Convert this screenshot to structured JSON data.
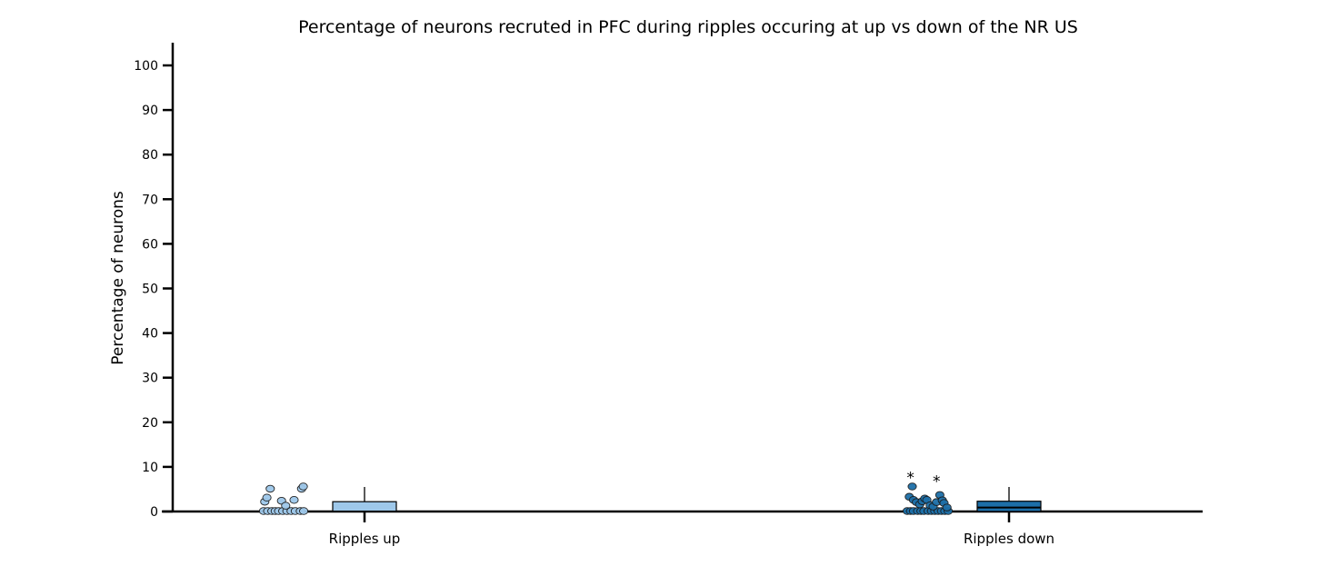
{
  "chart_data": {
    "type": "box",
    "title": "Percentage of neurons recruted in PFC during ripples occuring at up vs down of the NR US",
    "xlabel": "",
    "ylabel": "Percentage of neurons",
    "ylim": [
      0,
      105
    ],
    "yticks": [
      0,
      10,
      20,
      30,
      40,
      50,
      60,
      70,
      80,
      90,
      100
    ],
    "categories": [
      "Ripples up",
      "Ripples down"
    ],
    "series": [
      {
        "category": "Ripples up",
        "color": "#9ec8ea",
        "points": [
          {
            "j": 0.02,
            "y": 0
          },
          {
            "j": 0.12,
            "y": 0
          },
          {
            "j": 0.22,
            "y": 0
          },
          {
            "j": 0.3,
            "y": 0
          },
          {
            "j": 0.38,
            "y": 0
          },
          {
            "j": 0.48,
            "y": 0
          },
          {
            "j": 0.58,
            "y": 0
          },
          {
            "j": 0.68,
            "y": 0
          },
          {
            "j": 0.78,
            "y": 0
          },
          {
            "j": 0.9,
            "y": 0
          },
          {
            "j": 0.98,
            "y": 0
          },
          {
            "j": 0.05,
            "y": 2.1
          },
          {
            "j": 0.1,
            "y": 3.0
          },
          {
            "j": 0.18,
            "y": 5.0
          },
          {
            "j": 0.45,
            "y": 2.3
          },
          {
            "j": 0.55,
            "y": 1.2
          },
          {
            "j": 0.75,
            "y": 2.5
          },
          {
            "j": 0.93,
            "y": 5.0
          },
          {
            "j": 0.97,
            "y": 5.5
          }
        ],
        "box": {
          "q1": 0,
          "median": 0,
          "q3": 2.2,
          "whisker_low": 0,
          "whisker_high": 5.5
        },
        "outliers": []
      },
      {
        "category": "Ripples down",
        "color": "#1d6fa8",
        "points": [
          {
            "j": 0.0,
            "y": 0
          },
          {
            "j": 0.08,
            "y": 0
          },
          {
            "j": 0.15,
            "y": 0
          },
          {
            "j": 0.25,
            "y": 0
          },
          {
            "j": 0.33,
            "y": 0
          },
          {
            "j": 0.4,
            "y": 0
          },
          {
            "j": 0.5,
            "y": 0
          },
          {
            "j": 0.58,
            "y": 0
          },
          {
            "j": 0.66,
            "y": 0
          },
          {
            "j": 0.74,
            "y": 0
          },
          {
            "j": 0.82,
            "y": 0
          },
          {
            "j": 0.9,
            "y": 0
          },
          {
            "j": 0.98,
            "y": 0
          },
          {
            "j": 0.05,
            "y": 3.2
          },
          {
            "j": 0.12,
            "y": 5.5
          },
          {
            "j": 0.15,
            "y": 2.5
          },
          {
            "j": 0.22,
            "y": 2.0
          },
          {
            "j": 0.3,
            "y": 1.5
          },
          {
            "j": 0.36,
            "y": 2.2
          },
          {
            "j": 0.42,
            "y": 2.8
          },
          {
            "j": 0.47,
            "y": 2.5
          },
          {
            "j": 0.55,
            "y": 1.3
          },
          {
            "j": 0.62,
            "y": 1.0
          },
          {
            "j": 0.7,
            "y": 2.0
          },
          {
            "j": 0.78,
            "y": 3.6
          },
          {
            "j": 0.84,
            "y": 2.4
          },
          {
            "j": 0.88,
            "y": 1.8
          },
          {
            "j": 0.95,
            "y": 0.8
          }
        ],
        "box": {
          "q1": 0,
          "median": 0.9,
          "q3": 2.3,
          "whisker_low": 0,
          "whisker_high": 5.5
        },
        "outliers": [
          {
            "j": 0.08,
            "y": 8.0
          },
          {
            "j": 0.7,
            "y": 7.2
          }
        ]
      }
    ],
    "grid": false,
    "legend": "none"
  }
}
